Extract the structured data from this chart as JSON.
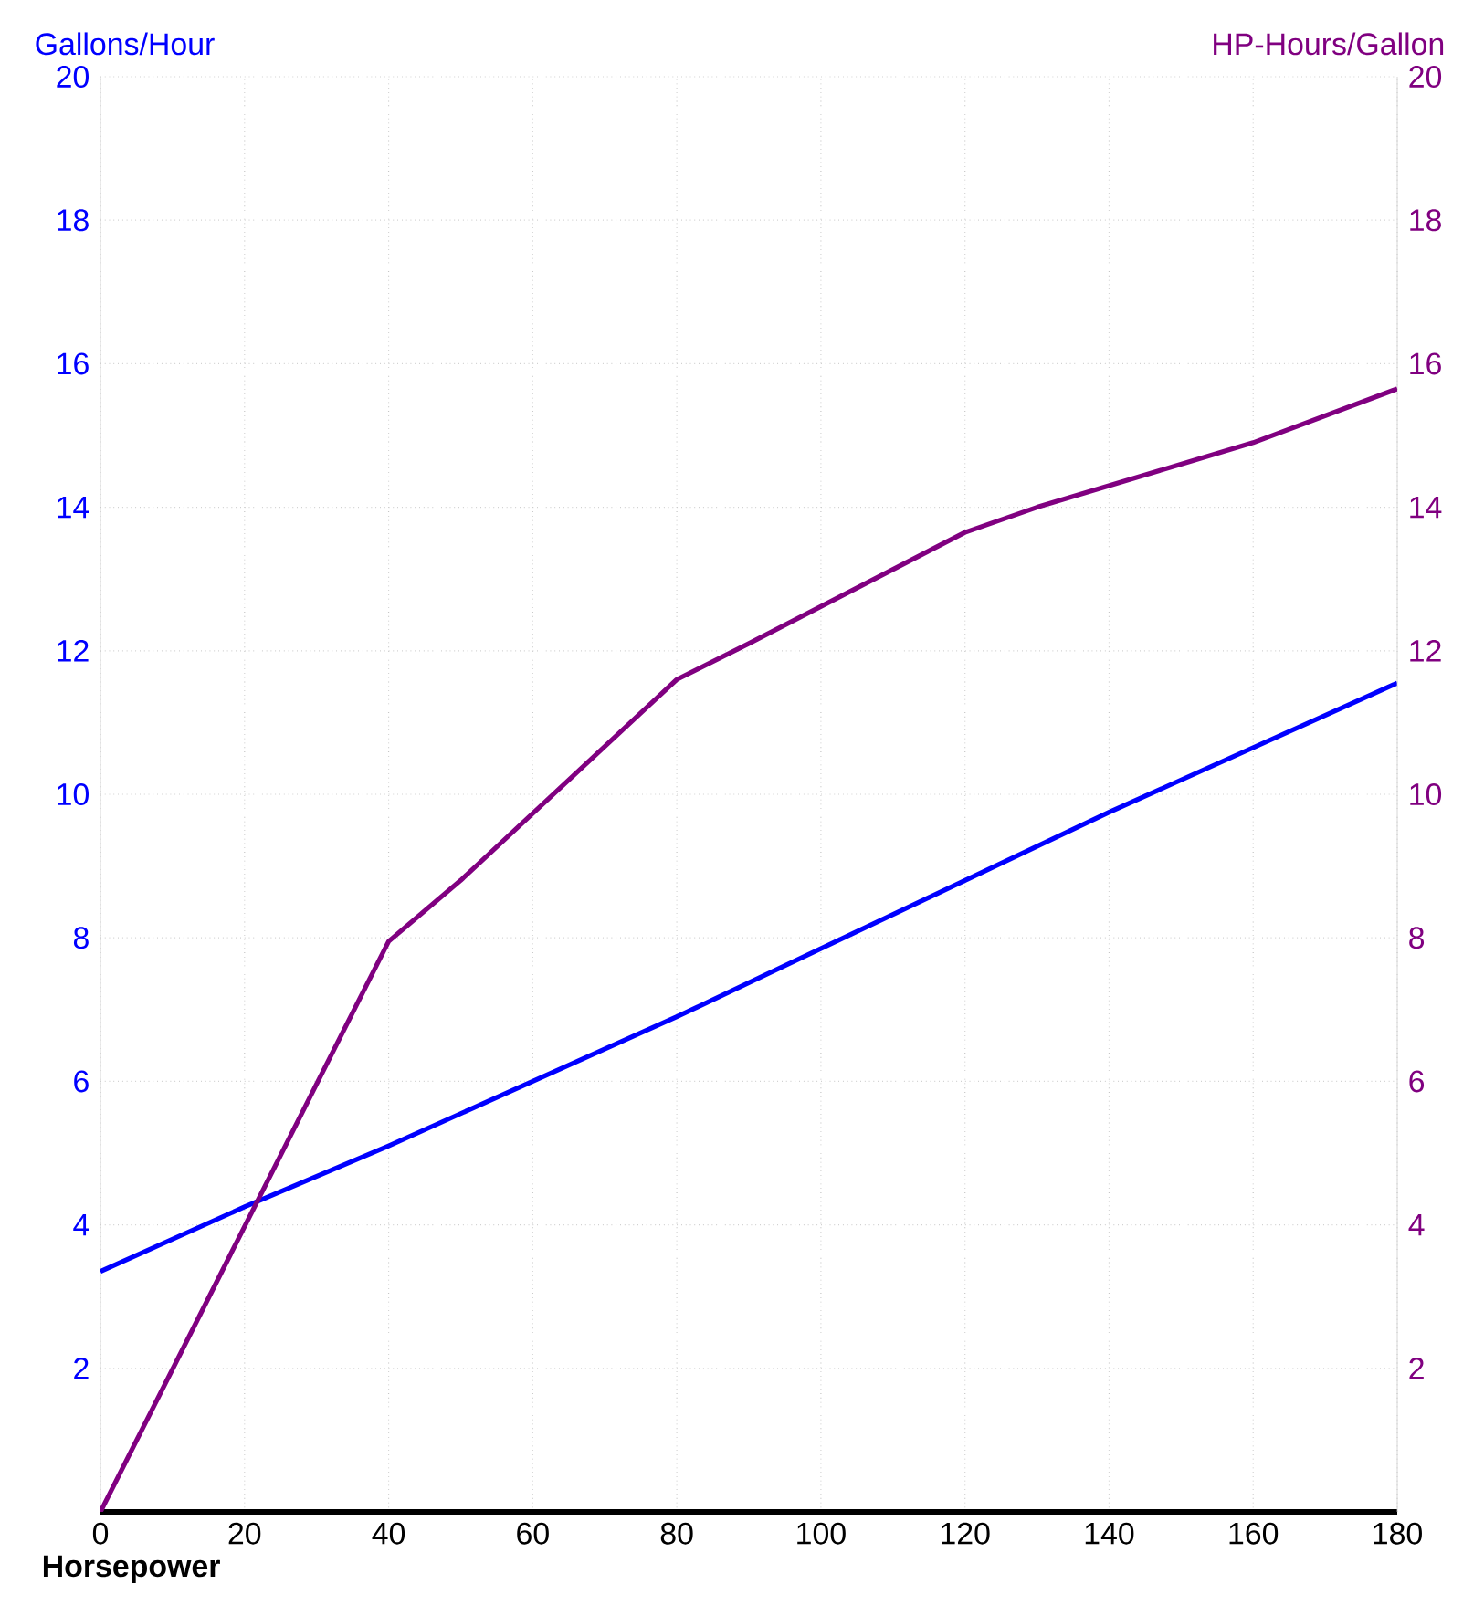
{
  "chart_data": {
    "type": "line",
    "xlabel": "Horsepower",
    "ylabel": "Gallons/Hour",
    "y2label": "HP-Hours/Gallon",
    "xlim": [
      0,
      180
    ],
    "xticks": [
      0,
      20,
      40,
      60,
      80,
      100,
      120,
      140,
      160,
      180
    ],
    "ylim": [
      0,
      20
    ],
    "yticks": [
      2,
      4,
      6,
      8,
      10,
      12,
      14,
      16,
      18,
      20
    ],
    "y2lim": [
      0,
      20
    ],
    "y2ticks": [
      2,
      4,
      6,
      8,
      10,
      12,
      14,
      16,
      18,
      20
    ],
    "grid": true,
    "series": [
      {
        "color": "#0000ff",
        "x": [
          0,
          20,
          40,
          60,
          80,
          100,
          120,
          140,
          160,
          180
        ],
        "values": [
          3.35,
          4.25,
          5.1,
          6.0,
          6.9,
          7.85,
          8.8,
          9.75,
          10.65,
          11.55
        ]
      },
      {
        "color": "#800080",
        "axis": "y2",
        "x": [
          0,
          40,
          50,
          80,
          90,
          120,
          130,
          160,
          180
        ],
        "values": [
          0,
          7.95,
          8.8,
          11.6,
          12.1,
          13.65,
          14.0,
          14.9,
          15.65
        ]
      }
    ]
  }
}
